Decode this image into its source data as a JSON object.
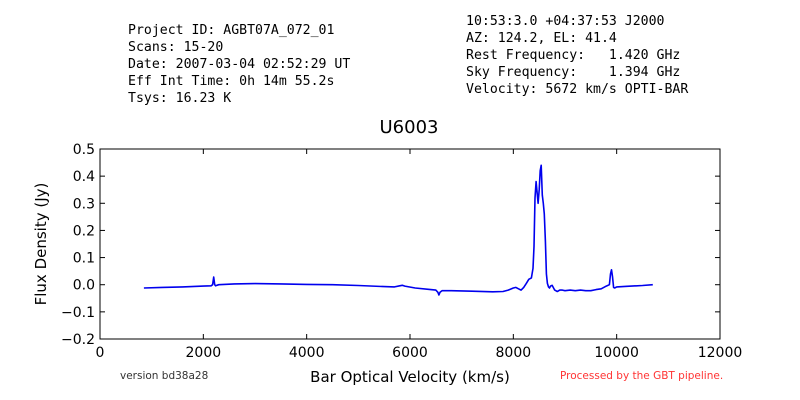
{
  "header": {
    "left": [
      "Project ID: AGBT07A_072_01",
      "Scans: 15-20",
      "Date: 2007-03-04 02:52:29 UT",
      "Eff Int Time: 0h 14m 55.2s",
      "Tsys: 16.23 K"
    ],
    "right": [
      "10:53:3.0 +04:37:53 J2000",
      "AZ: 124.2, EL: 41.4",
      "Rest Frequency:   1.420 GHz",
      "Sky Frequency:    1.394 GHz",
      "Velocity: 5672 km/s OPTI-BAR"
    ]
  },
  "footer": {
    "version": "version bd38a28",
    "processed": "Processed by the GBT pipeline."
  },
  "chart_data": {
    "type": "line",
    "title": "U6003",
    "xlabel": "Bar Optical Velocity (km/s)",
    "ylabel": "Flux Density (Jy)",
    "xlim": [
      0,
      12000
    ],
    "ylim": [
      -0.2,
      0.5
    ],
    "xticks": [
      "0",
      "2000",
      "4000",
      "6000",
      "8000",
      "10000",
      "12000"
    ],
    "yticks": [
      "−0.2",
      "−0.1",
      "0.0",
      "0.1",
      "0.2",
      "0.3",
      "0.4",
      "0.5"
    ],
    "grid": false,
    "line_color": "#0000ee",
    "series": [
      {
        "x": [
          850,
          1200,
          1600,
          2000,
          2150,
          2180,
          2200,
          2220,
          2240,
          2260,
          2300,
          2600,
          3000,
          3500,
          4000,
          4500,
          5000,
          5500,
          5700,
          5800,
          5850,
          5900,
          6100,
          6400,
          6500,
          6540,
          6560,
          6580,
          6620,
          6800,
          7200,
          7600,
          7800,
          7900,
          8000,
          8050,
          8100,
          8150,
          8200,
          8250,
          8300,
          8350,
          8380,
          8400,
          8420,
          8440,
          8460,
          8480,
          8500,
          8520,
          8540,
          8560,
          8580,
          8600,
          8620,
          8640,
          8660,
          8680,
          8700,
          8720,
          8750,
          8800,
          8850,
          8900,
          8950,
          9000,
          9100,
          9200,
          9300,
          9400,
          9500,
          9600,
          9700,
          9800,
          9860,
          9880,
          9900,
          9920,
          9940,
          9960,
          10000,
          10200,
          10500,
          10700
        ],
        "y": [
          -0.012,
          -0.01,
          -0.008,
          -0.005,
          -0.004,
          0.0,
          0.028,
          0.0,
          -0.004,
          -0.002,
          0.0,
          0.003,
          0.004,
          0.003,
          0.001,
          0.0,
          -0.003,
          -0.007,
          -0.008,
          -0.004,
          -0.002,
          -0.005,
          -0.012,
          -0.018,
          -0.02,
          -0.028,
          -0.038,
          -0.028,
          -0.022,
          -0.022,
          -0.024,
          -0.026,
          -0.025,
          -0.02,
          -0.012,
          -0.01,
          -0.015,
          -0.02,
          -0.01,
          0.005,
          0.02,
          0.025,
          0.06,
          0.14,
          0.32,
          0.38,
          0.34,
          0.3,
          0.35,
          0.42,
          0.44,
          0.33,
          0.3,
          0.26,
          0.16,
          0.04,
          0.005,
          -0.008,
          -0.012,
          -0.005,
          -0.002,
          -0.02,
          -0.025,
          -0.02,
          -0.02,
          -0.022,
          -0.02,
          -0.022,
          -0.02,
          -0.022,
          -0.022,
          -0.018,
          -0.015,
          -0.005,
          0.0,
          0.04,
          0.055,
          0.03,
          -0.01,
          -0.012,
          -0.008,
          -0.006,
          -0.003,
          0.0
        ]
      }
    ]
  }
}
